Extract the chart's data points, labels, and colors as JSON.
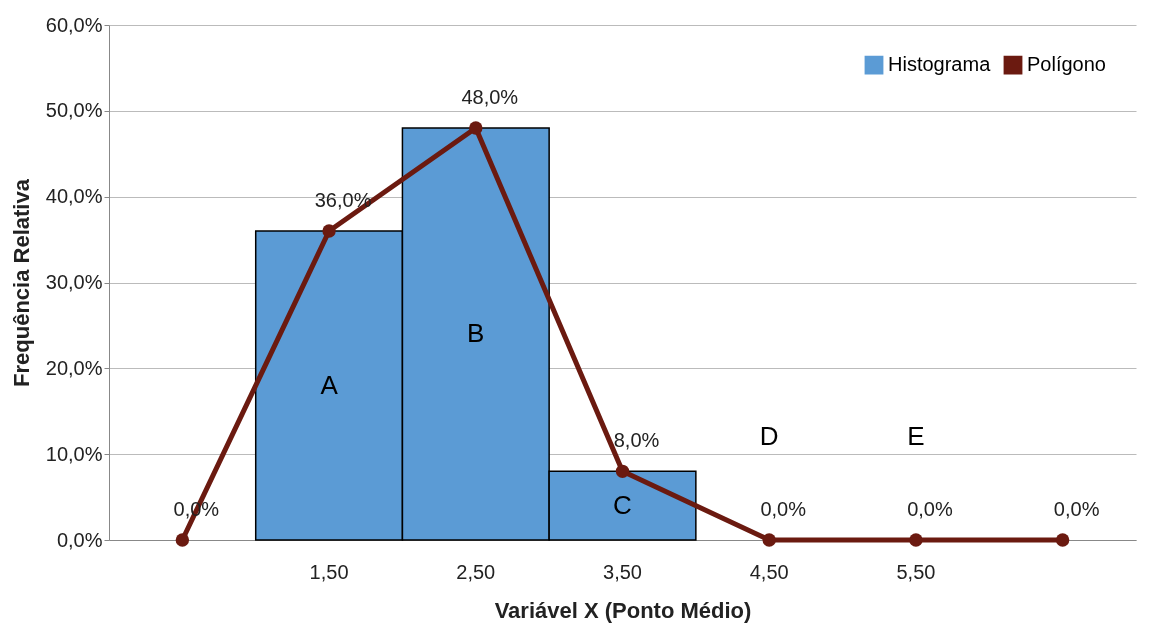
{
  "chart_data": {
    "type": "bar",
    "xlabel": "Variável X (Ponto Médio)",
    "ylabel": "Frequência Relativa",
    "categories": [
      null,
      "1,50",
      "2,50",
      "3,50",
      "4,50",
      "5,50",
      null
    ],
    "series": [
      {
        "name": "Histograma",
        "color": "#5b9bd5",
        "values": [
          null,
          36,
          48,
          8,
          null,
          null,
          null
        ]
      },
      {
        "name": "Polígono",
        "type": "line",
        "color": "#6b1a10",
        "values": [
          0,
          36,
          48,
          8,
          0,
          0,
          0
        ],
        "value_labels": [
          "0,0%",
          "36,0%",
          "48,0%",
          "8,0%",
          "0,0%",
          "0,0%",
          "0,0%"
        ]
      }
    ],
    "ylim": [
      0,
      60
    ],
    "yticks": [
      {
        "value": 0,
        "label": "0,0%"
      },
      {
        "value": 10,
        "label": "10,0%"
      },
      {
        "value": 20,
        "label": "20,0%"
      },
      {
        "value": 30,
        "label": "30,0%"
      },
      {
        "value": 40,
        "label": "40,0%"
      },
      {
        "value": 50,
        "label": "50,0%"
      },
      {
        "value": 60,
        "label": "60,0%"
      }
    ],
    "annotations": [
      "A",
      "B",
      "C",
      "D",
      "E"
    ],
    "grid": "y",
    "legend": "top right",
    "marker": "circle",
    "line_style": "solid"
  }
}
